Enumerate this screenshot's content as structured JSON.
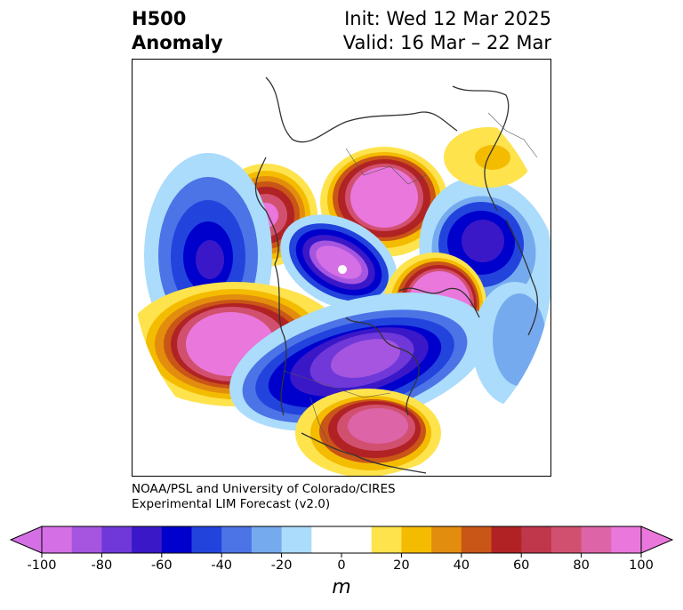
{
  "title": {
    "line1": "H500",
    "line2": "Anomaly"
  },
  "info": {
    "init": "Init: Wed 12 Mar 2025",
    "valid": "Valid: 16 Mar – 22 Mar"
  },
  "credit": {
    "line1": "NOAA/PSL and University of Colorado/CIRES",
    "line2": "Experimental LIM Forecast (v2.0)"
  },
  "colorbar": {
    "units": "m",
    "tick_labels": [
      "-100",
      "-80",
      "-60",
      "-40",
      "-20",
      "0",
      "20",
      "40",
      "60",
      "80",
      "100"
    ],
    "colors": [
      "#d56fe6",
      "#a555df",
      "#7038d9",
      "#3a18c8",
      "#0000cc",
      "#2244dd",
      "#4c74e6",
      "#76aaef",
      "#abdcfb",
      "#ffffff",
      "#ffffff",
      "#fee34d",
      "#f4bc00",
      "#e38d0e",
      "#c95517",
      "#b12224",
      "#c0364a",
      "#d2506f",
      "#dc64a7",
      "#ea77dc"
    ],
    "extend": "both"
  },
  "anomaly_centers": [
    {
      "name": "alaska-ridge",
      "sign": "+",
      "value": 90
    },
    {
      "name": "siberia-ridge",
      "sign": "+",
      "value": 95
    },
    {
      "name": "europe-ridge",
      "sign": "+",
      "value": 100
    },
    {
      "name": "pacific-ridge",
      "sign": "+",
      "value": 100
    },
    {
      "name": "southeast-us-ridge",
      "sign": "+",
      "value": 70
    },
    {
      "name": "bering-trough",
      "sign": "-",
      "value": -85
    },
    {
      "name": "arctic-trough",
      "sign": "-",
      "value": -95
    },
    {
      "name": "central-asia-trough",
      "sign": "-",
      "value": -80
    },
    {
      "name": "north-america-trough",
      "sign": "-",
      "value": -90
    },
    {
      "name": "scandinavia-high",
      "sign": "+",
      "value": 25
    }
  ]
}
